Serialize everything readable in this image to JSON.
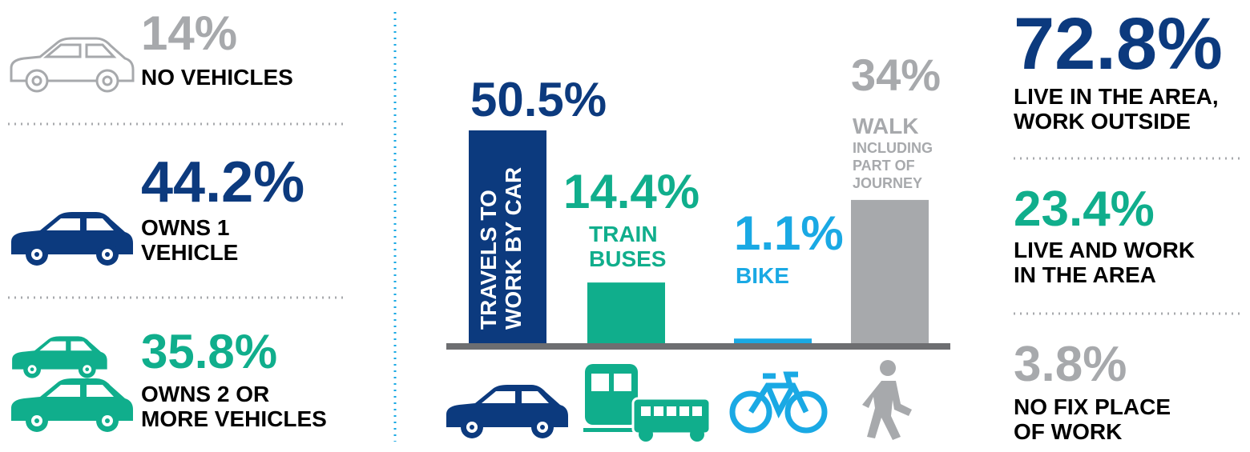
{
  "ownership": [
    {
      "value": "14%",
      "lines": [
        "NO VEHICLES"
      ],
      "color": "#a7a9ac"
    },
    {
      "value": "44.2%",
      "lines": [
        "OWNS 1",
        "VEHICLE"
      ],
      "color": "#0c3a7e"
    },
    {
      "value": "35.8%",
      "lines": [
        "OWNS 2 OR",
        "MORE VEHICLES"
      ],
      "color": "#10ae8c"
    }
  ],
  "chart_data": {
    "type": "bar",
    "categories": [
      [
        "TRAVELS TO",
        "WORK BY CAR"
      ],
      [
        "TRAIN",
        "BUSES"
      ],
      [
        "BIKE"
      ],
      [
        "WALK"
      ]
    ],
    "category_notes": [
      [],
      [],
      [],
      [
        "INCLUDING",
        "PART OF",
        "JOURNEY"
      ]
    ],
    "values": [
      50.5,
      14.4,
      1.1,
      34
    ],
    "value_labels": [
      "50.5%",
      "14.4%",
      "1.1%",
      "34%"
    ],
    "colors": [
      "#0c3a7e",
      "#10ae8c",
      "#1aa9e4",
      "#a7a9ac"
    ]
  },
  "work_location": [
    {
      "value": "72.8%",
      "lines": [
        "LIVE IN THE AREA,",
        "WORK OUTSIDE"
      ],
      "color": "#0c3a7e"
    },
    {
      "value": "23.4%",
      "lines": [
        "LIVE AND WORK",
        "IN THE AREA"
      ],
      "color": "#10ae8c"
    },
    {
      "value": "3.8%",
      "lines": [
        "NO FIX PLACE",
        "OF WORK"
      ],
      "color": "#a7a9ac"
    }
  ]
}
